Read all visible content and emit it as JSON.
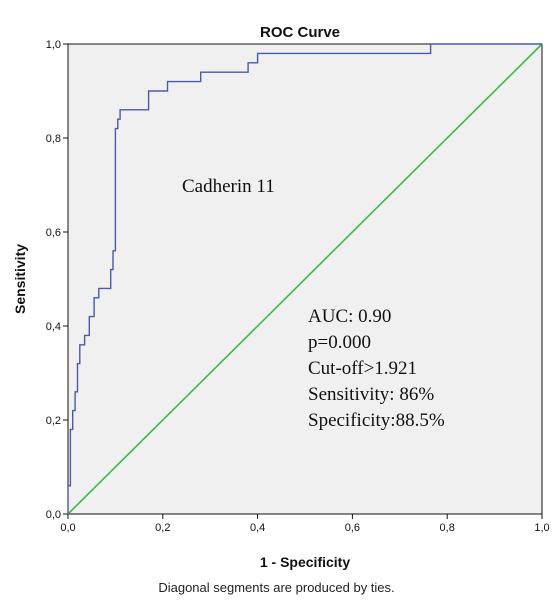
{
  "chart_data": {
    "type": "line",
    "title": "ROC Curve",
    "xlabel": "1 - Specificity",
    "ylabel": "Sensitivity",
    "xlim": [
      0,
      1
    ],
    "ylim": [
      0,
      1
    ],
    "x_ticks": [
      "0,0",
      "0,2",
      "0,4",
      "0,6",
      "0,8",
      "1,0"
    ],
    "y_ticks": [
      "0,0",
      "0,2",
      "0,4",
      "0,6",
      "0,8",
      "1,0"
    ],
    "grid": false,
    "series": [
      {
        "name": "Cadherin 11",
        "color": "#4a5aa8",
        "points": [
          [
            0,
            0
          ],
          [
            0,
            0.06
          ],
          [
            0.005,
            0.06
          ],
          [
            0.005,
            0.18
          ],
          [
            0.01,
            0.18
          ],
          [
            0.01,
            0.22
          ],
          [
            0.015,
            0.22
          ],
          [
            0.015,
            0.26
          ],
          [
            0.02,
            0.26
          ],
          [
            0.02,
            0.32
          ],
          [
            0.025,
            0.32
          ],
          [
            0.025,
            0.36
          ],
          [
            0.035,
            0.36
          ],
          [
            0.035,
            0.38
          ],
          [
            0.045,
            0.38
          ],
          [
            0.045,
            0.42
          ],
          [
            0.055,
            0.42
          ],
          [
            0.055,
            0.46
          ],
          [
            0.065,
            0.46
          ],
          [
            0.065,
            0.48
          ],
          [
            0.09,
            0.48
          ],
          [
            0.09,
            0.52
          ],
          [
            0.095,
            0.52
          ],
          [
            0.095,
            0.56
          ],
          [
            0.1,
            0.56
          ],
          [
            0.1,
            0.82
          ],
          [
            0.105,
            0.82
          ],
          [
            0.105,
            0.84
          ],
          [
            0.11,
            0.84
          ],
          [
            0.11,
            0.86
          ],
          [
            0.17,
            0.86
          ],
          [
            0.17,
            0.9
          ],
          [
            0.21,
            0.9
          ],
          [
            0.21,
            0.92
          ],
          [
            0.28,
            0.92
          ],
          [
            0.28,
            0.94
          ],
          [
            0.38,
            0.94
          ],
          [
            0.38,
            0.96
          ],
          [
            0.4,
            0.96
          ],
          [
            0.4,
            0.98
          ],
          [
            0.765,
            0.98
          ],
          [
            0.765,
            1.0
          ],
          [
            1.0,
            1.0
          ]
        ]
      },
      {
        "name": "reference-diagonal",
        "color": "#3cb84a",
        "points": [
          [
            0,
            0
          ],
          [
            1,
            1
          ]
        ]
      }
    ],
    "curve_label": "Cadherin 11",
    "annotations": [
      "AUC: 0.90",
      "p=0.000",
      "Cut-off>1.921",
      "Sensitivity: 86%",
      "Specificity:88.5%"
    ],
    "background_color": "#f0f0f0"
  },
  "footnote": "Diagonal segments are produced by ties."
}
